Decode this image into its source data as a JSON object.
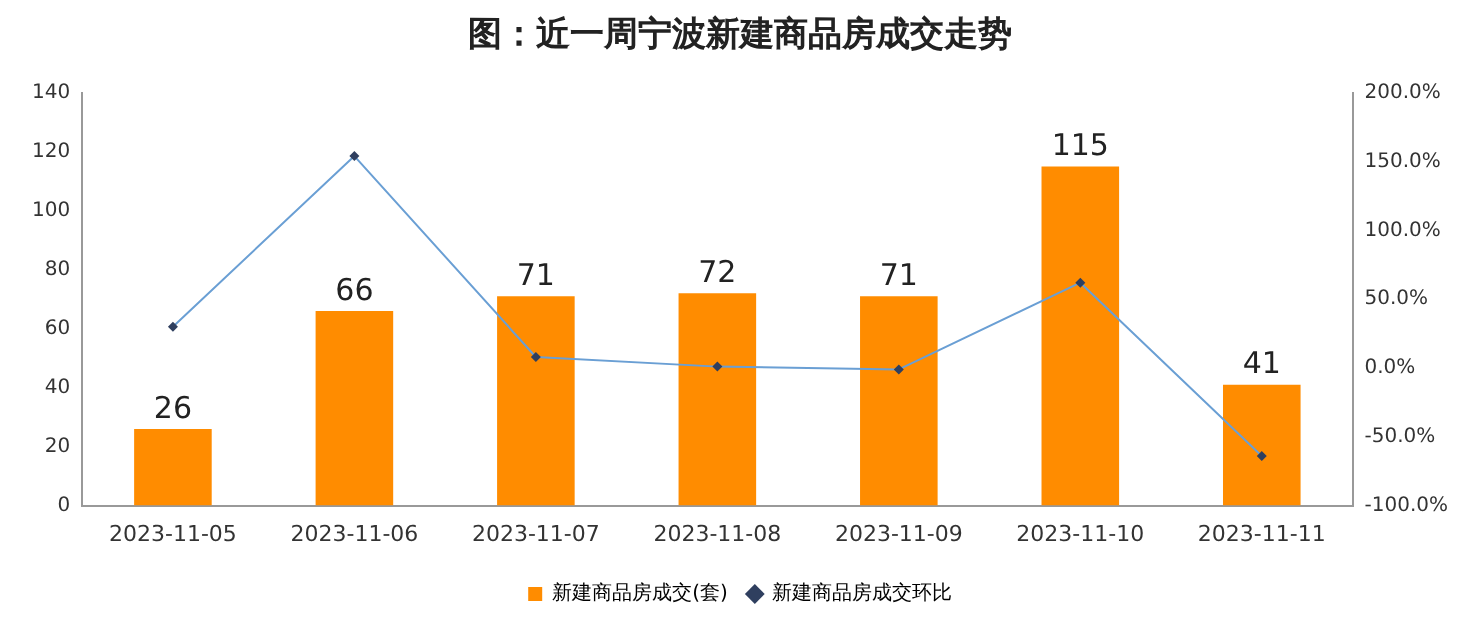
{
  "chart_data": {
    "type": "bar",
    "title": "图：近一周宁波新建商品房成交走势",
    "categories": [
      "2023-11-05",
      "2023-11-06",
      "2023-11-07",
      "2023-11-08",
      "2023-11-09",
      "2023-11-10",
      "2023-11-11"
    ],
    "series": [
      {
        "name": "新建商品房成交(套)",
        "color": "#ff8c00",
        "values": [
          26,
          66,
          71,
          72,
          71,
          115,
          41
        ],
        "value_labels": [
          "26",
          "66",
          "71",
          "72",
          "71",
          "115",
          "41"
        ]
      },
      {
        "name": "新建商品房成交环比",
        "type": "line",
        "axis": "y2",
        "color": "#6a9fd4",
        "marker": "diamond",
        "values": [
          30,
          154,
          8,
          1,
          -1,
          62,
          -64
        ]
      }
    ],
    "ylim": [
      0,
      140
    ],
    "yticks": [
      0,
      20,
      40,
      60,
      80,
      100,
      120,
      140
    ],
    "y2lim": [
      -100,
      200
    ],
    "y2ticks": [
      {
        "value": -100,
        "label": "-100.0%"
      },
      {
        "value": -50,
        "label": "-50.0%"
      },
      {
        "value": 0,
        "label": "0.0%"
      },
      {
        "value": 50,
        "label": "50.0%"
      },
      {
        "value": 100,
        "label": "100.0%"
      },
      {
        "value": 150,
        "label": "150.0%"
      },
      {
        "value": 200,
        "label": "200.0%"
      }
    ],
    "grid": false,
    "legend": "bottom"
  }
}
